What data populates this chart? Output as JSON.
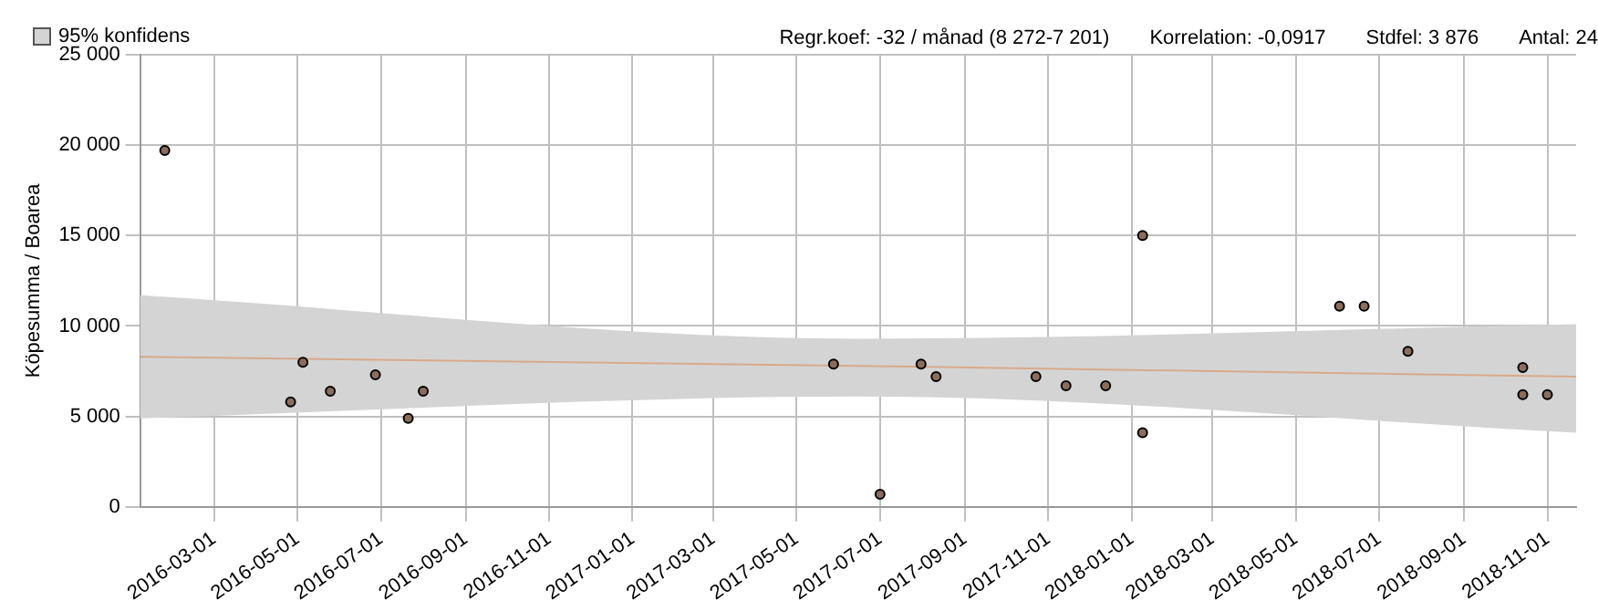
{
  "chart_data": {
    "type": "scatter",
    "ylabel": "Köpesumma / Boarea",
    "annotations": [
      "Regr.koef: -32 / månad (8 272-7 201)",
      "Korrelation: -0,0917",
      "Stdfel: 3 876",
      "Antal: 24"
    ],
    "x": [
      "2016-01-25",
      "2016-04-26",
      "2016-05-05",
      "2016-05-25",
      "2016-06-27",
      "2016-07-21",
      "2016-08-01",
      "2017-05-28",
      "2017-07-01",
      "2017-07-31",
      "2017-08-11",
      "2017-10-23",
      "2017-11-14",
      "2017-12-13",
      "2018-01-09",
      "2018-01-09",
      "2018-06-02",
      "2018-06-20",
      "2018-07-22",
      "2018-10-14",
      "2018-10-14",
      "2018-11-01"
    ],
    "series": [
      {
        "color": "#8c6d5c",
        "marker": "circle",
        "values": [
          19700,
          5800,
          8000,
          6400,
          7300,
          4900,
          6400,
          7900,
          700,
          7900,
          7200,
          7200,
          6700,
          6700,
          15000,
          4100,
          11100,
          11100,
          8600,
          7700,
          6200,
          6200
        ]
      },
      {
        "type": "line",
        "name": "95% konfidens",
        "color": "#d9a98a",
        "x": [
          "2016-01-07",
          "2017-06-15",
          "2018-11-22"
        ],
        "values": [
          8300,
          7800,
          7200
        ],
        "lower": [
          4900,
          6100,
          4100
        ],
        "upper": [
          11700,
          9300,
          10100
        ]
      }
    ],
    "xlim": [
      "2016-01-07",
      "2018-11-22"
    ],
    "xticks": [
      "2016-03-01",
      "2016-05-01",
      "2016-07-01",
      "2016-09-01",
      "2016-11-01",
      "2017-01-01",
      "2017-03-01",
      "2017-05-01",
      "2017-07-01",
      "2017-09-01",
      "2017-11-01",
      "2018-01-01",
      "2018-03-01",
      "2018-05-01",
      "2018-07-01",
      "2018-09-01",
      "2018-11-01"
    ],
    "ylim": [
      0,
      25000
    ],
    "yticks": [
      0,
      {
        "value": 5000,
        "label": "5 000"
      },
      {
        "value": 10000,
        "label": "10 000"
      },
      {
        "value": 15000,
        "label": "15 000"
      },
      {
        "value": 20000,
        "label": "20 000"
      },
      {
        "value": 25000,
        "label": "25 000"
      }
    ],
    "grid": true,
    "legend": "top left"
  }
}
